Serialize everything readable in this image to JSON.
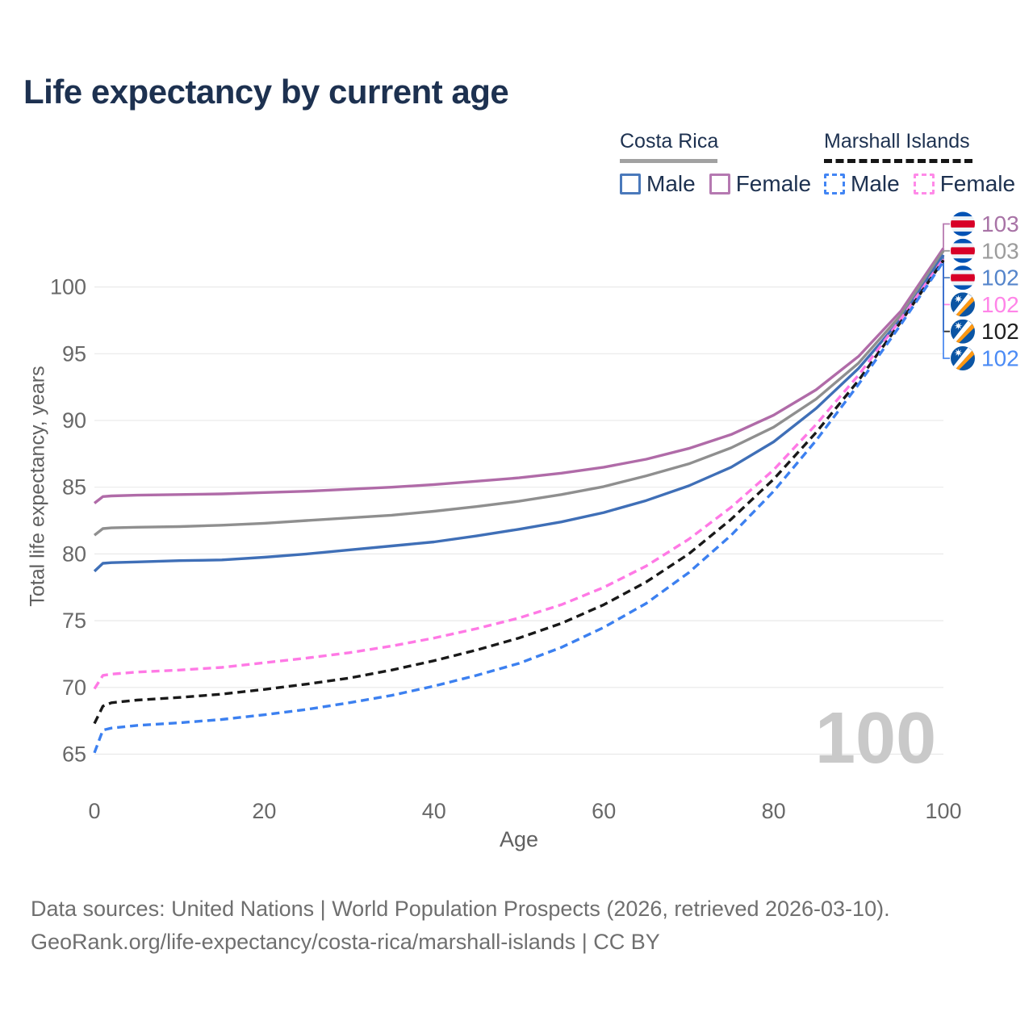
{
  "title": "Life expectancy by current age",
  "watermark_age": "100",
  "legend": {
    "groups": [
      {
        "label": "Costa Rica",
        "line_style": "solid",
        "line_color": "#a1a1a1",
        "items": [
          {
            "label": "Male",
            "swatch_color": "#4a79bb",
            "swatch_style": "solid"
          },
          {
            "label": "Female",
            "swatch_color": "#b579b1",
            "swatch_style": "solid"
          }
        ]
      },
      {
        "label": "Marshall Islands",
        "line_style": "dashed",
        "line_color": "#161616",
        "items": [
          {
            "label": "Male",
            "swatch_color": "#4285f4",
            "swatch_style": "dashed"
          },
          {
            "label": "Female",
            "swatch_color": "#ff8ae8",
            "swatch_style": "dashed"
          }
        ]
      }
    ]
  },
  "chart_data": {
    "type": "line",
    "title": "Life expectancy by current age",
    "xlabel": "Age",
    "ylabel": "Total life expectancy, years",
    "xlim": [
      0,
      100
    ],
    "ylim": [
      64,
      104
    ],
    "x_ticks": [
      0,
      20,
      40,
      60,
      80,
      100
    ],
    "y_ticks": [
      65,
      70,
      75,
      80,
      85,
      90,
      95,
      100
    ],
    "grid": "horizontal-only",
    "legend_position": "top-right",
    "gridline_color": "#e9e9e9",
    "tick_label_color": "#686868",
    "ages": [
      0,
      1,
      2,
      5,
      10,
      15,
      20,
      25,
      30,
      35,
      40,
      45,
      50,
      55,
      60,
      65,
      70,
      75,
      80,
      85,
      90,
      95,
      100
    ],
    "series": [
      {
        "id": "costa-rica-female",
        "country": "Costa Rica",
        "sex": "female",
        "style": "solid",
        "color": "#b06ba8",
        "flag": "costa-rica",
        "end_label": "103",
        "end_label_color": "#a873a6",
        "values": [
          83.8,
          84.3,
          84.35,
          84.4,
          84.45,
          84.5,
          84.6,
          84.7,
          84.85,
          85.0,
          85.2,
          85.45,
          85.7,
          86.05,
          86.5,
          87.1,
          87.9,
          88.95,
          90.4,
          92.3,
          94.8,
          98.2,
          102.9
        ]
      },
      {
        "id": "costa-rica-all",
        "country": "Costa Rica",
        "sex": "all",
        "style": "solid",
        "color": "#8f8f8f",
        "flag": "costa-rica",
        "end_label": "103",
        "end_label_color": "#9c9c9c",
        "values": [
          81.4,
          81.9,
          81.95,
          82.0,
          82.05,
          82.15,
          82.3,
          82.5,
          82.7,
          82.9,
          83.2,
          83.55,
          83.95,
          84.45,
          85.05,
          85.85,
          86.75,
          87.95,
          89.5,
          91.6,
          94.3,
          97.9,
          102.7
        ]
      },
      {
        "id": "costa-rica-male",
        "country": "Costa Rica",
        "sex": "male",
        "style": "solid",
        "color": "#3f6fb7",
        "flag": "costa-rica",
        "end_label": "102",
        "end_label_color": "#5585cb",
        "values": [
          78.7,
          79.3,
          79.35,
          79.4,
          79.5,
          79.55,
          79.75,
          80.0,
          80.3,
          80.6,
          80.9,
          81.35,
          81.85,
          82.4,
          83.1,
          84.0,
          85.1,
          86.5,
          88.4,
          90.9,
          93.9,
          97.6,
          102.4
        ]
      },
      {
        "id": "marshall-islands-female",
        "country": "Marshall Islands",
        "sex": "female",
        "style": "dashed",
        "color": "#ff79e5",
        "flag": "marshall-islands",
        "end_label": "102",
        "end_label_color": "#ff85e8",
        "values": [
          69.9,
          70.9,
          71.0,
          71.15,
          71.3,
          71.5,
          71.85,
          72.2,
          72.6,
          73.1,
          73.7,
          74.4,
          75.2,
          76.2,
          77.5,
          79.1,
          81.1,
          83.5,
          86.3,
          89.7,
          93.4,
          97.6,
          102.1
        ]
      },
      {
        "id": "marshall-islands-all",
        "country": "Marshall Islands",
        "sex": "all",
        "style": "dashed",
        "color": "#191919",
        "flag": "marshall-islands",
        "end_label": "102",
        "end_label_color": "#1f1f1f",
        "values": [
          67.3,
          68.6,
          68.85,
          69.05,
          69.25,
          69.5,
          69.85,
          70.25,
          70.7,
          71.3,
          72.0,
          72.8,
          73.7,
          74.8,
          76.2,
          77.9,
          80.0,
          82.6,
          85.6,
          89.1,
          93.0,
          97.4,
          102.0
        ]
      },
      {
        "id": "marshall-islands-male",
        "country": "Marshall Islands",
        "sex": "male",
        "style": "dashed",
        "color": "#3c80f0",
        "flag": "marshall-islands",
        "end_label": "102",
        "end_label_color": "#4b8bf5",
        "values": [
          65.1,
          66.8,
          66.95,
          67.15,
          67.35,
          67.6,
          67.95,
          68.35,
          68.85,
          69.4,
          70.1,
          70.9,
          71.8,
          73.0,
          74.5,
          76.3,
          78.6,
          81.4,
          84.7,
          88.5,
          92.7,
          97.2,
          101.9
        ]
      }
    ],
    "flag_colors": {
      "costa-rica": {
        "blue": "#0052b4",
        "red": "#d80027",
        "white": "#eef2f6"
      },
      "marshall-islands": {
        "blue": "#0b55a4",
        "orange": "#ff9811",
        "white": "#ffffff"
      }
    }
  },
  "footer": {
    "line1": "Data sources: United Nations | World Population Prospects (2026, retrieved 2026-03-10).",
    "line2": "GeoRank.org/life-expectancy/costa-rica/marshall-islands | CC BY"
  }
}
